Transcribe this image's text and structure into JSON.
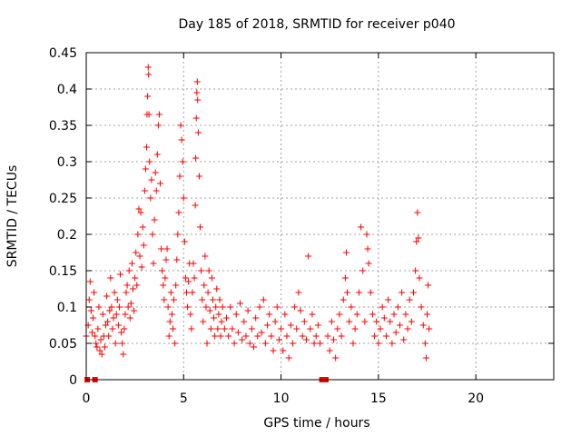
{
  "chart_data": {
    "type": "scatter",
    "title": "Day 185 of 2018, SRMTID for receiver p040",
    "xlabel": "GPS time / hours",
    "ylabel": "SRMTID / TECUs",
    "xlim": [
      0,
      24
    ],
    "ylim": [
      0,
      0.45
    ],
    "xticks": [
      0,
      5,
      10,
      15,
      20
    ],
    "xtick_labels": [
      "0",
      "5",
      "10",
      "15",
      "20"
    ],
    "yticks": [
      0,
      0.05,
      0.1,
      0.15,
      0.2,
      0.25,
      0.3,
      0.35,
      0.4,
      0.45
    ],
    "ytick_labels": [
      "0",
      "0.05",
      "0.1",
      "0.15",
      "0.2",
      "0.25",
      "0.3",
      "0.35",
      "0.4",
      "0.45"
    ],
    "grid": true,
    "marker": "plus",
    "marker_color": "#ff0000",
    "zero_markers": [
      0.05,
      0.45,
      12.1,
      12.3
    ],
    "series": [
      {
        "name": "SRMTID",
        "points": [
          [
            0.0,
            0.06
          ],
          [
            0.1,
            0.075
          ],
          [
            0.15,
            0.11
          ],
          [
            0.2,
            0.135
          ],
          [
            0.25,
            0.095
          ],
          [
            0.3,
            0.065
          ],
          [
            0.35,
            0.085
          ],
          [
            0.4,
            0.12
          ],
          [
            0.45,
            0.06
          ],
          [
            0.5,
            0.05
          ],
          [
            0.55,
            0.045
          ],
          [
            0.6,
            0.07
          ],
          [
            0.65,
            0.1
          ],
          [
            0.7,
            0.04
          ],
          [
            0.75,
            0.055
          ],
          [
            0.8,
            0.035
          ],
          [
            0.85,
            0.09
          ],
          [
            0.9,
            0.06
          ],
          [
            0.95,
            0.045
          ],
          [
            1.0,
            0.075
          ],
          [
            1.05,
            0.115
          ],
          [
            1.1,
            0.08
          ],
          [
            1.15,
            0.06
          ],
          [
            1.2,
            0.095
          ],
          [
            1.25,
            0.14
          ],
          [
            1.3,
            0.1
          ],
          [
            1.35,
            0.07
          ],
          [
            1.4,
            0.085
          ],
          [
            1.45,
            0.12
          ],
          [
            1.5,
            0.05
          ],
          [
            1.55,
            0.09
          ],
          [
            1.6,
            0.11
          ],
          [
            1.65,
            0.075
          ],
          [
            1.7,
            0.1
          ],
          [
            1.75,
            0.145
          ],
          [
            1.8,
            0.065
          ],
          [
            1.85,
            0.05
          ],
          [
            1.9,
            0.035
          ],
          [
            1.95,
            0.07
          ],
          [
            2.0,
            0.09
          ],
          [
            2.05,
            0.12
          ],
          [
            2.1,
            0.13
          ],
          [
            2.15,
            0.1
          ],
          [
            2.2,
            0.15
          ],
          [
            2.25,
            0.085
          ],
          [
            2.3,
            0.105
          ],
          [
            2.35,
            0.16
          ],
          [
            2.4,
            0.125
          ],
          [
            2.45,
            0.095
          ],
          [
            2.5,
            0.14
          ],
          [
            2.55,
            0.175
          ],
          [
            2.6,
            0.13
          ],
          [
            2.65,
            0.2
          ],
          [
            2.7,
            0.235
          ],
          [
            2.75,
            0.17
          ],
          [
            2.8,
            0.23
          ],
          [
            2.85,
            0.155
          ],
          [
            2.9,
            0.21
          ],
          [
            2.95,
            0.185
          ],
          [
            3.0,
            0.26
          ],
          [
            3.05,
            0.29
          ],
          [
            3.1,
            0.32
          ],
          [
            3.12,
            0.365
          ],
          [
            3.15,
            0.39
          ],
          [
            3.18,
            0.43
          ],
          [
            3.2,
            0.42
          ],
          [
            3.22,
            0.365
          ],
          [
            3.25,
            0.3
          ],
          [
            3.3,
            0.25
          ],
          [
            3.35,
            0.275
          ],
          [
            3.4,
            0.2
          ],
          [
            3.45,
            0.16
          ],
          [
            3.5,
            0.22
          ],
          [
            3.55,
            0.285
          ],
          [
            3.6,
            0.26
          ],
          [
            3.65,
            0.31
          ],
          [
            3.7,
            0.35
          ],
          [
            3.75,
            0.365
          ],
          [
            3.8,
            0.27
          ],
          [
            3.85,
            0.18
          ],
          [
            3.9,
            0.15
          ],
          [
            3.95,
            0.13
          ],
          [
            4.0,
            0.11
          ],
          [
            4.05,
            0.14
          ],
          [
            4.1,
            0.165
          ],
          [
            4.15,
            0.18
          ],
          [
            4.2,
            0.1
          ],
          [
            4.25,
            0.06
          ],
          [
            4.3,
            0.08
          ],
          [
            4.35,
            0.12
          ],
          [
            4.4,
            0.09
          ],
          [
            4.45,
            0.07
          ],
          [
            4.5,
            0.11
          ],
          [
            4.55,
            0.05
          ],
          [
            4.6,
            0.13
          ],
          [
            4.65,
            0.165
          ],
          [
            4.7,
            0.2
          ],
          [
            4.75,
            0.23
          ],
          [
            4.8,
            0.28
          ],
          [
            4.85,
            0.35
          ],
          [
            4.9,
            0.33
          ],
          [
            4.95,
            0.3
          ],
          [
            5.0,
            0.25
          ],
          [
            5.05,
            0.19
          ],
          [
            5.1,
            0.14
          ],
          [
            5.15,
            0.12
          ],
          [
            5.2,
            0.1
          ],
          [
            5.25,
            0.135
          ],
          [
            5.3,
            0.16
          ],
          [
            5.35,
            0.09
          ],
          [
            5.4,
            0.07
          ],
          [
            5.45,
            0.12
          ],
          [
            5.5,
            0.16
          ],
          [
            5.55,
            0.14
          ],
          [
            5.6,
            0.24
          ],
          [
            5.62,
            0.305
          ],
          [
            5.65,
            0.36
          ],
          [
            5.68,
            0.395
          ],
          [
            5.7,
            0.41
          ],
          [
            5.72,
            0.385
          ],
          [
            5.75,
            0.34
          ],
          [
            5.8,
            0.28
          ],
          [
            5.85,
            0.21
          ],
          [
            5.9,
            0.15
          ],
          [
            5.95,
            0.11
          ],
          [
            6.0,
            0.08
          ],
          [
            6.05,
            0.13
          ],
          [
            6.1,
            0.17
          ],
          [
            6.15,
            0.1
          ],
          [
            6.2,
            0.05
          ],
          [
            6.25,
            0.12
          ],
          [
            6.3,
            0.15
          ],
          [
            6.35,
            0.095
          ],
          [
            6.4,
            0.07
          ],
          [
            6.45,
            0.14
          ],
          [
            6.5,
            0.11
          ],
          [
            6.55,
            0.085
          ],
          [
            6.6,
            0.06
          ],
          [
            6.65,
            0.1
          ],
          [
            6.7,
            0.125
          ],
          [
            6.75,
            0.07
          ],
          [
            6.8,
            0.09
          ],
          [
            6.85,
            0.11
          ],
          [
            6.9,
            0.06
          ],
          [
            6.95,
            0.08
          ],
          [
            7.0,
            0.1
          ],
          [
            7.1,
            0.07
          ],
          [
            7.2,
            0.085
          ],
          [
            7.3,
            0.06
          ],
          [
            7.4,
            0.1
          ],
          [
            7.5,
            0.07
          ],
          [
            7.6,
            0.05
          ],
          [
            7.7,
            0.09
          ],
          [
            7.8,
            0.065
          ],
          [
            7.9,
            0.105
          ],
          [
            8.0,
            0.055
          ],
          [
            8.1,
            0.08
          ],
          [
            8.2,
            0.06
          ],
          [
            8.3,
            0.095
          ],
          [
            8.4,
            0.05
          ],
          [
            8.5,
            0.07
          ],
          [
            8.6,
            0.045
          ],
          [
            8.7,
            0.085
          ],
          [
            8.8,
            0.06
          ],
          [
            8.9,
            0.1
          ],
          [
            9.0,
            0.065
          ],
          [
            9.1,
            0.11
          ],
          [
            9.2,
            0.05
          ],
          [
            9.3,
            0.075
          ],
          [
            9.4,
            0.09
          ],
          [
            9.5,
            0.06
          ],
          [
            9.6,
            0.04
          ],
          [
            9.7,
            0.08
          ],
          [
            9.8,
            0.1
          ],
          [
            9.9,
            0.055
          ],
          [
            10.0,
            0.07
          ],
          [
            10.1,
            0.04
          ],
          [
            10.2,
            0.09
          ],
          [
            10.3,
            0.06
          ],
          [
            10.4,
            0.03
          ],
          [
            10.5,
            0.075
          ],
          [
            10.6,
            0.05
          ],
          [
            10.7,
            0.1
          ],
          [
            10.8,
            0.07
          ],
          [
            10.9,
            0.12
          ],
          [
            11.0,
            0.095
          ],
          [
            11.1,
            0.06
          ],
          [
            11.2,
            0.08
          ],
          [
            11.3,
            0.055
          ],
          [
            11.4,
            0.17
          ],
          [
            11.5,
            0.07
          ],
          [
            11.6,
            0.09
          ],
          [
            11.7,
            0.05
          ],
          [
            11.8,
            0.06
          ],
          [
            11.9,
            0.075
          ],
          [
            12.0,
            0.05
          ],
          [
            12.4,
            0.06
          ],
          [
            12.5,
            0.04
          ],
          [
            12.6,
            0.08
          ],
          [
            12.7,
            0.055
          ],
          [
            12.8,
            0.03
          ],
          [
            12.9,
            0.07
          ],
          [
            13.0,
            0.09
          ],
          [
            13.1,
            0.06
          ],
          [
            13.2,
            0.11
          ],
          [
            13.3,
            0.14
          ],
          [
            13.35,
            0.175
          ],
          [
            13.4,
            0.12
          ],
          [
            13.5,
            0.08
          ],
          [
            13.6,
            0.1
          ],
          [
            13.7,
            0.05
          ],
          [
            13.8,
            0.07
          ],
          [
            13.9,
            0.09
          ],
          [
            14.0,
            0.12
          ],
          [
            14.1,
            0.21
          ],
          [
            14.2,
            0.15
          ],
          [
            14.3,
            0.08
          ],
          [
            14.4,
            0.2
          ],
          [
            14.45,
            0.18
          ],
          [
            14.5,
            0.16
          ],
          [
            14.6,
            0.12
          ],
          [
            14.7,
            0.09
          ],
          [
            14.8,
            0.06
          ],
          [
            14.9,
            0.08
          ],
          [
            15.0,
            0.05
          ],
          [
            15.1,
            0.07
          ],
          [
            15.2,
            0.1
          ],
          [
            15.3,
            0.085
          ],
          [
            15.4,
            0.06
          ],
          [
            15.5,
            0.11
          ],
          [
            15.6,
            0.08
          ],
          [
            15.7,
            0.05
          ],
          [
            15.8,
            0.09
          ],
          [
            15.9,
            0.065
          ],
          [
            16.0,
            0.1
          ],
          [
            16.1,
            0.075
          ],
          [
            16.2,
            0.12
          ],
          [
            16.3,
            0.055
          ],
          [
            16.4,
            0.09
          ],
          [
            16.5,
            0.07
          ],
          [
            16.6,
            0.11
          ],
          [
            16.7,
            0.08
          ],
          [
            16.8,
            0.12
          ],
          [
            16.9,
            0.15
          ],
          [
            16.95,
            0.19
          ],
          [
            17.0,
            0.23
          ],
          [
            17.05,
            0.195
          ],
          [
            17.1,
            0.14
          ],
          [
            17.2,
            0.1
          ],
          [
            17.3,
            0.075
          ],
          [
            17.4,
            0.05
          ],
          [
            17.45,
            0.03
          ],
          [
            17.5,
            0.09
          ],
          [
            17.55,
            0.13
          ],
          [
            17.6,
            0.07
          ]
        ]
      }
    ]
  }
}
